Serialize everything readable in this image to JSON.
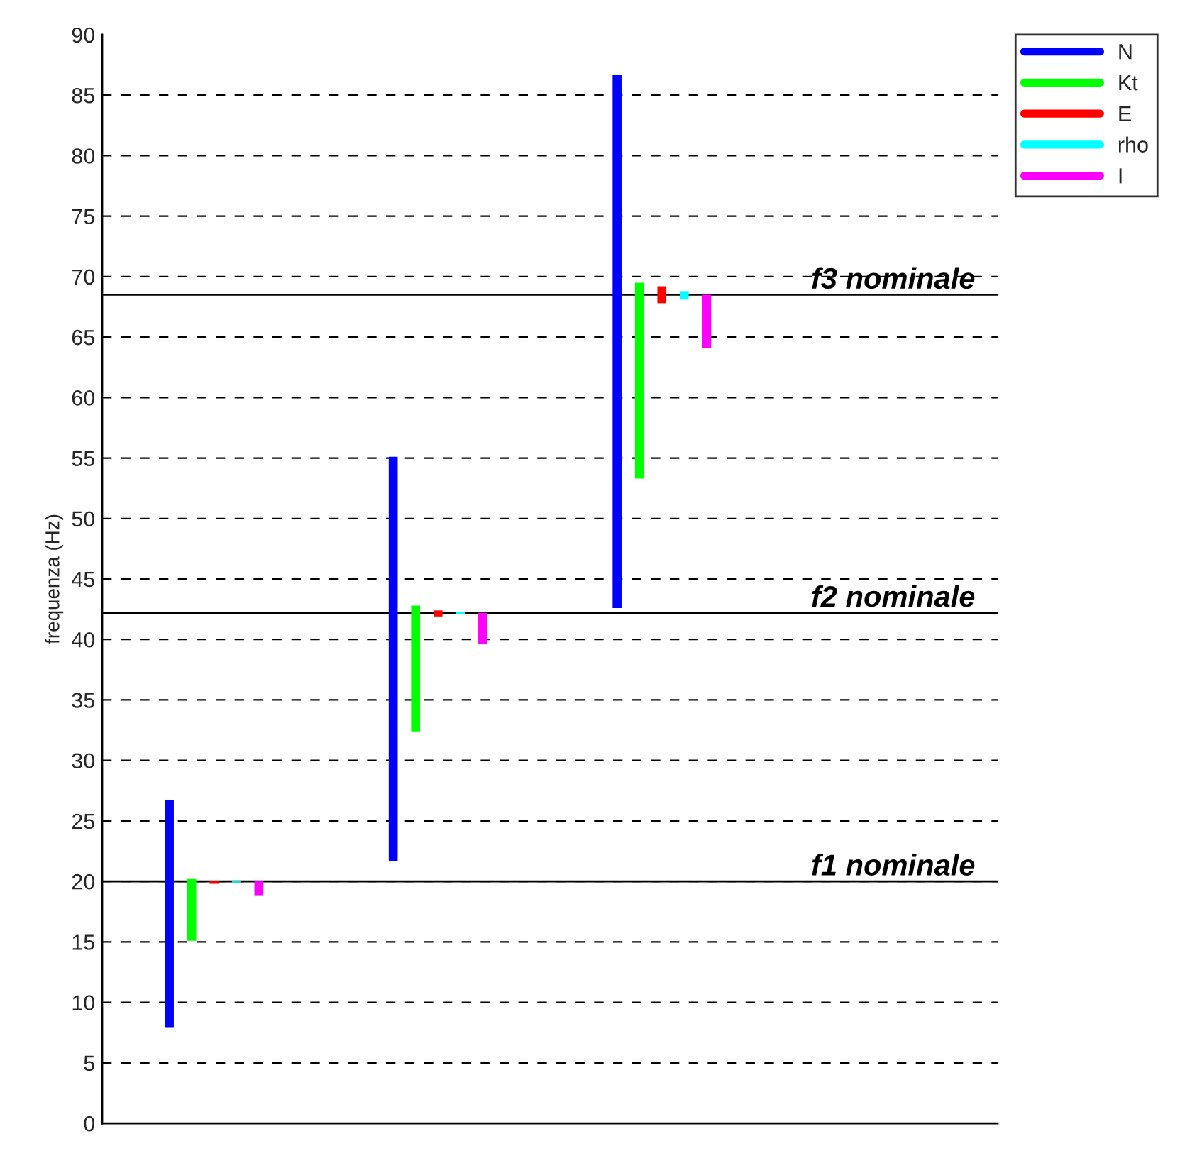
{
  "chart_data": {
    "type": "bar",
    "ylabel": "frequenza (Hz)",
    "categories": [
      null,
      null,
      null,
      null
    ],
    "series": [
      {
        "name": "N",
        "color": "#0000ff",
        "base": [
          7.9,
          21.7,
          42.6,
          null
        ],
        "values": [
          18.8,
          33.4,
          44.1,
          null
        ]
      },
      {
        "name": "Kt",
        "color": "#00ff00",
        "base": [
          15.1,
          32.4,
          53.3,
          null
        ],
        "values": [
          5.1,
          10.4,
          16.2,
          null
        ]
      },
      {
        "name": "E",
        "color": "#ff0000",
        "base": [
          19.8,
          41.9,
          67.8,
          null
        ],
        "values": [
          0.2,
          0.5,
          1.4,
          null
        ]
      },
      {
        "name": "rho",
        "color": "#00ffff",
        "base": [
          19.9,
          42.1,
          68.1,
          null
        ],
        "values": [
          0.1,
          0.2,
          0.7,
          null
        ]
      },
      {
        "name": "I",
        "color": "#ff00ff",
        "base": [
          18.8,
          39.6,
          64.1,
          null
        ],
        "values": [
          1.2,
          2.6,
          4.4,
          null
        ]
      }
    ],
    "ylim": [
      0,
      90
    ],
    "yticks": [
      0,
      5,
      10,
      15,
      20,
      25,
      30,
      35,
      40,
      45,
      50,
      55,
      60,
      65,
      70,
      75,
      80,
      85,
      90
    ],
    "ref_lines": [
      {
        "axis": "y",
        "value": 20,
        "label": "f1 nominale",
        "color": "#000000",
        "line_style": "solid"
      },
      {
        "axis": "y",
        "value": 42.2,
        "label": "f2 nominale",
        "color": "#000000",
        "line_style": "solid"
      },
      {
        "axis": "y",
        "value": 68.5,
        "label": "f3 nominale",
        "color": "#000000",
        "line_style": "solid"
      }
    ],
    "grid": "y",
    "legend": "top right",
    "tick_labels": "y"
  }
}
